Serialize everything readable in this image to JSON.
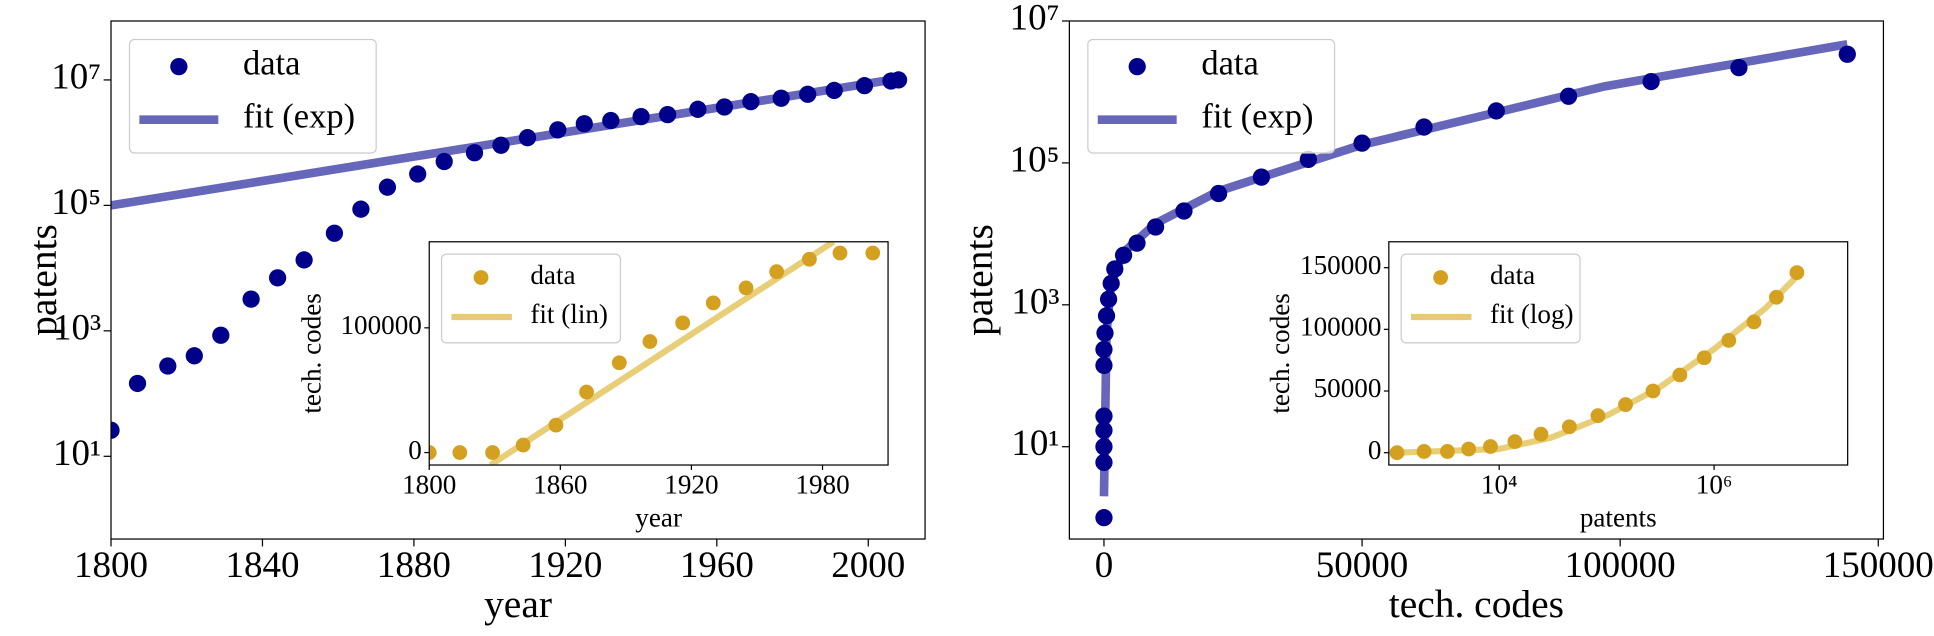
{
  "chart_data": [
    {
      "type": "scatter",
      "xlabel": "year",
      "ylabel": "patents",
      "xscale": "linear",
      "yscale": "log",
      "xlim": [
        1800,
        2015
      ],
      "ylim": [
        0.48,
        87000000
      ],
      "xticks": [
        1800,
        1840,
        1880,
        1920,
        1960,
        2000
      ],
      "yticks": [
        {
          "value": 10,
          "label": "10¹"
        },
        {
          "value": 1000,
          "label": "10³"
        },
        {
          "value": 100000,
          "label": "10⁵"
        },
        {
          "value": 10000000,
          "label": "10⁷"
        }
      ],
      "legend": "upper left",
      "series": [
        {
          "name": "data",
          "type": "scatter",
          "color": "#00008b",
          "x": [
            1800,
            1807,
            1815,
            1822,
            1829,
            1837,
            1844,
            1851,
            1859,
            1866,
            1873,
            1881,
            1888,
            1896,
            1903,
            1910,
            1918,
            1925,
            1932,
            1940,
            1947,
            1955,
            1962,
            1969,
            1977,
            1984,
            1991,
            1999,
            2006,
            2008
          ],
          "values": [
            26,
            145,
            275,
            400,
            850,
            3200,
            7000,
            13500,
            36000,
            87000,
            195000,
            316000,
            500000,
            690000,
            910000,
            1200000,
            1600000,
            2000000,
            2250000,
            2600000,
            2800000,
            3400000,
            3700000,
            4500000,
            5100000,
            5900000,
            6800000,
            8100000,
            9600000,
            10000000
          ]
        },
        {
          "name": "fit (exp)",
          "type": "line",
          "color": "#6666bb",
          "x": [
            1800,
            2008
          ],
          "values": [
            100000,
            10500000
          ]
        }
      ]
    },
    {
      "type": "scatter",
      "xlabel": "year",
      "ylabel": "tech. codes",
      "xscale": "linear",
      "yscale": "linear",
      "xlim": [
        1800,
        2010
      ],
      "ylim": [
        -10000,
        169000
      ],
      "xticks": [
        1800,
        1860,
        1920,
        1980
      ],
      "yticks": [
        0,
        100000
      ],
      "legend": "upper left",
      "series": [
        {
          "name": "data",
          "type": "scatter",
          "color": "#d4a020",
          "x": [
            1800,
            1814,
            1829,
            1843,
            1858,
            1872,
            1887,
            1901,
            1916,
            1930,
            1945,
            1959,
            1974,
            1988,
            2003
          ],
          "values": [
            0,
            0,
            0,
            6000,
            22000,
            48500,
            72000,
            89000,
            104000,
            120000,
            132000,
            145000,
            155000,
            160000,
            160000
          ]
        },
        {
          "name": "fit (lin)",
          "type": "line",
          "color": "#e6cb70",
          "x": [
            1828,
            1985
          ],
          "values": [
            -10000,
            169000
          ]
        }
      ]
    },
    {
      "type": "scatter",
      "xlabel": "tech. codes",
      "ylabel": "patents",
      "xscale": "linear",
      "yscale": "log",
      "xlim": [
        -6700,
        151000
      ],
      "ylim": [
        0.5,
        10000000
      ],
      "xticks": [
        0,
        50000,
        100000,
        150000
      ],
      "yticks": [
        {
          "value": 10,
          "label": "10¹"
        },
        {
          "value": 1000,
          "label": "10³"
        },
        {
          "value": 100000,
          "label": "10⁵"
        },
        {
          "value": 10000000,
          "label": "10⁷"
        }
      ],
      "legend": "upper left",
      "series": [
        {
          "name": "data",
          "type": "scatter",
          "color": "#00008b",
          "x": [
            0,
            0,
            0,
            0,
            0,
            0,
            0,
            200,
            500,
            900,
            1400,
            2100,
            3800,
            6400,
            10000,
            15500,
            22200,
            30500,
            39600,
            50000,
            62000,
            76000,
            90000,
            106000,
            123000,
            144000
          ],
          "values": [
            1,
            6,
            10,
            17,
            27,
            140,
            235,
            400,
            700,
            1200,
            2000,
            3200,
            5000,
            7400,
            12500,
            21000,
            37000,
            63000,
            112000,
            190000,
            320000,
            540000,
            870000,
            1400000,
            2200000,
            3400000
          ]
        },
        {
          "name": "fit (exp)",
          "type": "line",
          "color": "#6666bb",
          "x": [
            0,
            500,
            1400,
            3800,
            10000,
            22200,
            50000,
            97000,
            144000
          ],
          "values": [
            2,
            400,
            2000,
            5500,
            14000,
            40000,
            180000,
            1200000,
            4700000
          ]
        }
      ]
    },
    {
      "type": "scatter",
      "xlabel": "patents",
      "ylabel": "tech. codes",
      "xscale": "log",
      "yscale": "linear",
      "xlim": [
        940,
        17500000
      ],
      "ylim": [
        -10000,
        171000
      ],
      "xticks": [
        {
          "value": 10000,
          "label": "10⁴"
        },
        {
          "value": 1000000,
          "label": "10⁶"
        }
      ],
      "yticks": [
        0,
        50000,
        100000,
        150000
      ],
      "legend": "upper left",
      "series": [
        {
          "name": "data",
          "type": "scatter",
          "color": "#d4a020",
          "x": [
            1120,
            2000,
            3300,
            5200,
            8300,
            14000,
            24500,
            45000,
            83000,
            150000,
            270000,
            480000,
            810000,
            1370000,
            2350000,
            3800000,
            5900000
          ],
          "values": [
            0,
            1000,
            1000,
            3000,
            5000,
            9000,
            15000,
            21000,
            30000,
            39000,
            50000,
            63000,
            77000,
            91000,
            106000,
            126000,
            146000
          ]
        },
        {
          "name": "fit (log)",
          "type": "line",
          "color": "#e6cb70",
          "x": [
            1100,
            10000,
            30000,
            100000,
            300000,
            1000000,
            3000000,
            5900000
          ],
          "values": [
            0,
            3000,
            12000,
            30000,
            52000,
            84000,
            117000,
            143000
          ]
        }
      ]
    }
  ]
}
